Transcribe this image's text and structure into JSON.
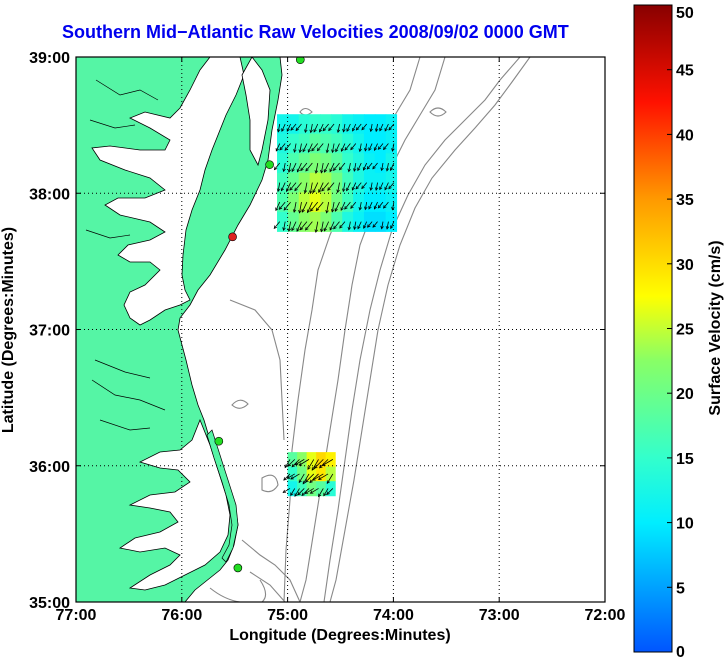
{
  "title": "Southern Mid−Atlantic Raw Velocities 2008/09/02 0000 GMT",
  "xaxis": {
    "label": "Longitude (Degrees:Minutes)",
    "ticks": [
      {
        "value": -77,
        "label": "77:00"
      },
      {
        "value": -76,
        "label": "76:00"
      },
      {
        "value": -75,
        "label": "75:00"
      },
      {
        "value": -74,
        "label": "74:00"
      },
      {
        "value": -73,
        "label": "73:00"
      },
      {
        "value": -72,
        "label": "72:00"
      }
    ],
    "range": [
      -77,
      -72
    ]
  },
  "yaxis": {
    "label": "Latitude (Degrees:Minutes)",
    "ticks": [
      {
        "value": 39,
        "label": "39:00"
      },
      {
        "value": 38,
        "label": "38:00"
      },
      {
        "value": 37,
        "label": "37:00"
      },
      {
        "value": 36,
        "label": "36:00"
      },
      {
        "value": 35,
        "label": "35:00"
      }
    ],
    "range": [
      35,
      39
    ]
  },
  "colorbar": {
    "label": "Surface Velocity (cm/s)",
    "range": [
      0,
      50
    ],
    "ticks": [
      {
        "value": 50,
        "label": "50"
      },
      {
        "value": 45,
        "label": "45"
      },
      {
        "value": 40,
        "label": "40"
      },
      {
        "value": 35,
        "label": "35"
      },
      {
        "value": 30,
        "label": "30"
      },
      {
        "value": 25,
        "label": "25"
      },
      {
        "value": 20,
        "label": "20"
      },
      {
        "value": 15,
        "label": "15"
      },
      {
        "value": 10,
        "label": "10"
      },
      {
        "value": 5,
        "label": "5"
      },
      {
        "value": 0,
        "label": "0"
      }
    ]
  },
  "colors": {
    "land": "#55f5a5",
    "title": "#0000ee",
    "site_ok": "#22dd22",
    "site_down": "#dd2222",
    "contour": "#888888"
  },
  "sites": [
    {
      "lon": -74.88,
      "lat": 38.98,
      "status": "ok"
    },
    {
      "lon": -75.17,
      "lat": 38.21,
      "status": "ok"
    },
    {
      "lon": -75.52,
      "lat": 37.68,
      "status": "down"
    },
    {
      "lon": -75.65,
      "lat": 36.18,
      "status": "ok"
    },
    {
      "lon": -75.47,
      "lat": 35.25,
      "status": "ok"
    }
  ],
  "velocity_north": {
    "lon_range": [
      -75.1,
      -73.97
    ],
    "lat_range": [
      37.72,
      38.58
    ],
    "speeds": [
      [
        12,
        12,
        14,
        15,
        15,
        14,
        12,
        11,
        10,
        10,
        11
      ],
      [
        13,
        15,
        16,
        18,
        17,
        16,
        14,
        12,
        10,
        10,
        11
      ],
      [
        14,
        17,
        19,
        21,
        20,
        18,
        15,
        13,
        11,
        10,
        12
      ],
      [
        16,
        19,
        22,
        24,
        23,
        20,
        16,
        13,
        11,
        11,
        12
      ],
      [
        17,
        21,
        24,
        26,
        24,
        20,
        16,
        12,
        10,
        10,
        11
      ],
      [
        15,
        19,
        22,
        23,
        21,
        17,
        13,
        11,
        9,
        9,
        10
      ]
    ],
    "arrow_direction_deg": 205
  },
  "velocity_south": {
    "lon_range": [
      -75.0,
      -74.55
    ],
    "lat_range": [
      35.78,
      36.1
    ],
    "speeds": [
      [
        18,
        22,
        26,
        30,
        28
      ],
      [
        15,
        20,
        26,
        29,
        24
      ],
      [
        12,
        16,
        20,
        18,
        14
      ]
    ],
    "arrow_direction_deg": 225
  }
}
